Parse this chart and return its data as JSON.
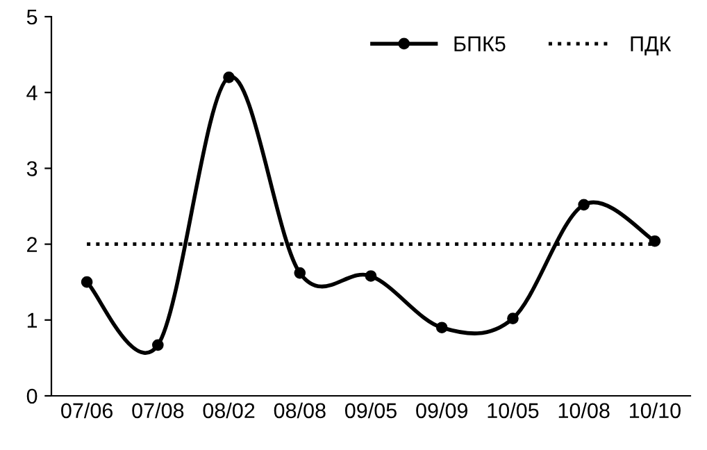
{
  "chart_data": {
    "type": "line",
    "categories": [
      "07/06",
      "07/08",
      "08/02",
      "08/08",
      "09/05",
      "09/09",
      "10/05",
      "10/08",
      "10/10"
    ],
    "series": [
      {
        "name": "БПК5",
        "color": "#000000",
        "values": [
          1.5,
          0.67,
          4.2,
          1.62,
          1.58,
          0.9,
          1.02,
          2.52,
          2.04
        ],
        "marker": "circle",
        "line_style": "solid"
      },
      {
        "name": "ПДК",
        "color": "#000000",
        "values": [
          2,
          2,
          2,
          2,
          2,
          2,
          2,
          2,
          2
        ],
        "marker": "none",
        "line_style": "dotted"
      }
    ],
    "ylim": [
      0,
      5
    ],
    "yticks": [
      0,
      1,
      2,
      3,
      4,
      5
    ],
    "grid": false,
    "legend": "top right"
  }
}
